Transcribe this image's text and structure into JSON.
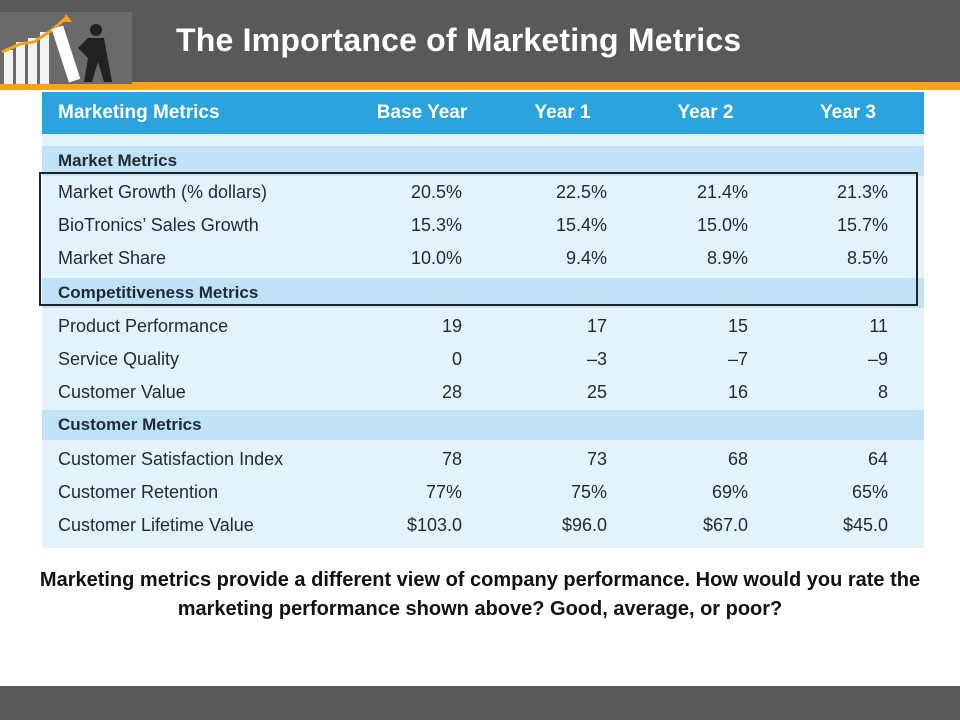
{
  "slide": {
    "title": "The Importance of Marketing Metrics",
    "caption": "Marketing metrics provide a different view of company performance. How would you rate the marketing performance shown above? Good, average, or poor?"
  },
  "table": {
    "headers": [
      "Marketing Metrics",
      "Base Year",
      "Year 1",
      "Year 2",
      "Year 3"
    ],
    "sections": [
      {
        "title": "Market Metrics",
        "rows": [
          [
            "Market Growth (% dollars)",
            "20.5%",
            "22.5%",
            "21.4%",
            "21.3%"
          ],
          [
            "BioTronics’ Sales Growth",
            "15.3%",
            "15.4%",
            "15.0%",
            "15.7%"
          ],
          [
            "Market Share",
            "10.0%",
            "9.4%",
            "8.9%",
            "8.5%"
          ]
        ]
      },
      {
        "title": "Competitiveness Metrics",
        "rows": [
          [
            "Product Performance",
            "19",
            "17",
            "15",
            "11"
          ],
          [
            "Service Quality",
            "0",
            "–3",
            "–7",
            "–9"
          ],
          [
            "Customer Value",
            "28",
            "25",
            "16",
            "8"
          ]
        ]
      },
      {
        "title": "Customer Metrics",
        "rows": [
          [
            "Customer Satisfaction Index",
            "78",
            "73",
            "68",
            "64"
          ],
          [
            "Customer Retention",
            "77%",
            "75%",
            "69%",
            "65%"
          ],
          [
            "Customer Lifetime Value",
            "$103.0",
            "$96.0",
            "$67.0",
            "$45.0"
          ]
        ]
      }
    ]
  },
  "colors": {
    "header_bar": "#595959",
    "accent_orange": "#f6a21b",
    "table_header": "#2aa3de",
    "section_band": "#bfe2f6",
    "table_body": "#e4f2fb"
  }
}
